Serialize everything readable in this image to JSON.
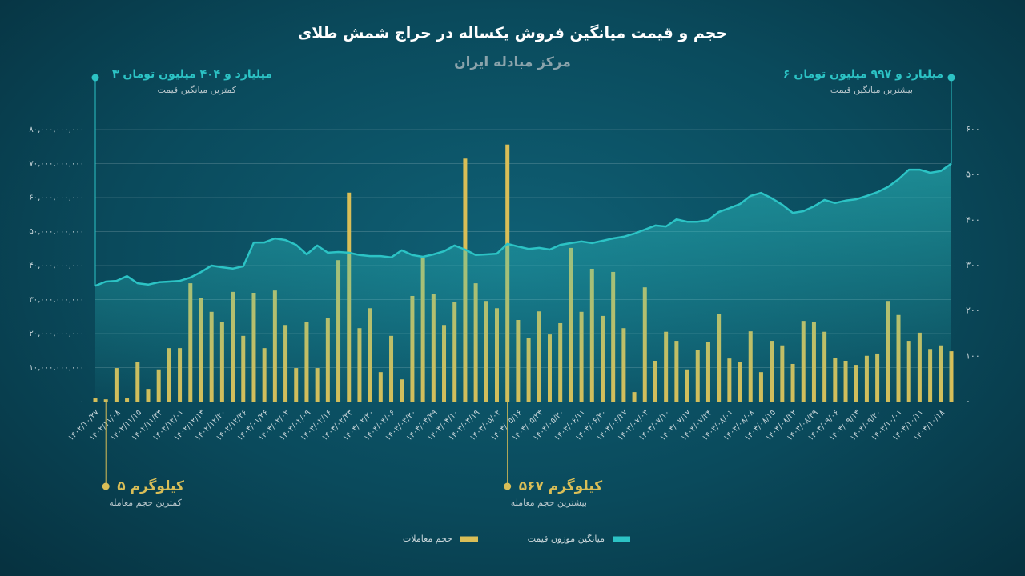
{
  "chart_data": {
    "type": "combo",
    "title": "حجم و قیمت میانگین فروش یکساله در حراج شمش طلای",
    "subtitle": "مرکز مبادله ایران",
    "categories": [
      "۱۴۰۲/۱۰/۲۷",
      null,
      "۱۴۰۲/۱۱/۰۸",
      null,
      "۱۴۰۲/۱۱/۱۵",
      null,
      "۱۴۰۲/۱۱/۲۴",
      null,
      "۱۴۰۲/۱۲/۰۱",
      null,
      "۱۴۰۲/۱۲/۱۳",
      null,
      "۱۴۰۲/۱۲/۲۰",
      null,
      "۱۴۰۲/۱۲/۲۶",
      null,
      "۱۴۰۳/۰۱/۲۶",
      null,
      "۱۴۰۳/۰۲/۰۲",
      null,
      "۱۴۰۳/۰۲/۰۹",
      null,
      "۱۴۰۳/۰۲/۱۶",
      null,
      "۱۴۰۳/۰۲/۲۳",
      null,
      "۱۴۰۳/۰۲/۳۰",
      null,
      "۱۴۰۳/۰۳/۰۶",
      null,
      "۱۴۰۳/۰۳/۲۰",
      null,
      "۱۴۰۳/۰۳/۲۹",
      null,
      "۱۴۰۳/۰۴/۱۰",
      null,
      "۱۴۰۳/۰۴/۱۹",
      null,
      "۱۴۰۳/۰۵/۰۲",
      null,
      "۱۴۰۳/۰۵/۱۶",
      null,
      "۱۴۰۳/۰۵/۲۳",
      null,
      "۱۴۰۳/۰۵/۳۰",
      null,
      "۱۴۰۳/۰۶/۱۱",
      null,
      "۱۴۰۳/۰۶/۲۰",
      null,
      "۱۴۰۳/۰۶/۲۷",
      null,
      "۱۴۰۳/۰۷/۰۳",
      null,
      "۱۴۰۳/۰۷/۱۰",
      null,
      "۱۴۰۳/۰۷/۱۷",
      null,
      "۱۴۰۳/۰۷/۲۴",
      null,
      "۱۴۰۳/۰۸/۰۱",
      null,
      "۱۴۰۳/۰۸/۰۸",
      null,
      "۱۴۰۳/۰۸/۱۵",
      null,
      "۱۴۰۳/۰۸/۲۲",
      null,
      "۱۴۰۳/۰۸/۲۹",
      null,
      "۱۴۰۳/۰۹/۰۶",
      null,
      "۱۴۰۳/۰۹/۱۳",
      null,
      "۱۴۰۳/۰۹/۲۰",
      null,
      "۱۴۰۳/۱۰/۰۱",
      null,
      "۱۴۰۳/۱۰/۱۱",
      null,
      "۱۴۰۳/۱۰/۱۸",
      null
    ],
    "series": [
      {
        "name": "حجم معاملات",
        "type": "bar",
        "axis": "y2",
        "color": "#d9be57",
        "values": [
          7,
          5,
          74,
          7,
          88,
          28,
          71,
          118,
          118,
          261,
          228,
          198,
          175,
          242,
          145,
          240,
          118,
          245,
          169,
          74,
          175,
          74,
          184,
          312,
          461,
          162,
          206,
          65,
          145,
          49,
          233,
          318,
          238,
          169,
          219,
          536,
          261,
          222,
          206,
          567,
          180,
          141,
          199,
          148,
          173,
          339,
          198,
          293,
          189,
          286,
          162,
          21,
          252,
          90,
          154,
          134,
          71,
          113,
          131,
          194,
          95,
          88,
          155,
          65,
          134,
          124,
          83,
          178,
          176,
          154,
          97,
          90,
          81,
          101,
          106,
          222,
          191,
          134,
          152,
          116,
          124,
          111
        ]
      },
      {
        "name": "میانگین موزون قیمت",
        "type": "area",
        "color": "#2cc3c5",
        "values": [
          34040000000,
          35300000000,
          35500000000,
          36900000000,
          34800000000,
          34400000000,
          35100000000,
          35300000000,
          35500000000,
          36500000000,
          38100000000,
          40000000000,
          39500000000,
          39100000000,
          39800000000,
          46800000000,
          46800000000,
          48000000000,
          47500000000,
          46100000000,
          43300000000,
          45900000000,
          43800000000,
          44000000000,
          43800000000,
          43100000000,
          42800000000,
          42800000000,
          42400000000,
          44500000000,
          43100000000,
          42600000000,
          43300000000,
          44200000000,
          45900000000,
          44700000000,
          43100000000,
          43300000000,
          43500000000,
          46400000000,
          45600000000,
          44900000000,
          45200000000,
          44700000000,
          46100000000,
          46600000000,
          47100000000,
          46600000000,
          47300000000,
          48000000000,
          48500000000,
          49400000000,
          50600000000,
          51800000000,
          51500000000,
          53600000000,
          52900000000,
          52900000000,
          53400000000,
          55800000000,
          56900000000,
          58100000000,
          60500000000,
          61400000000,
          59800000000,
          57900000000,
          55500000000,
          56000000000,
          57400000000,
          59300000000,
          58400000000,
          59100000000,
          59500000000,
          60500000000,
          61600000000,
          63100000000,
          65400000000,
          68200000000,
          68200000000,
          67300000000,
          67800000000,
          69970000000
        ]
      }
    ],
    "ylim": [
      0,
      80000000000
    ],
    "yticks": [
      {
        "value": 0,
        "label": "۰"
      },
      {
        "value": 10000000000,
        "label": "۱۰,۰۰۰,۰۰۰,۰۰۰"
      },
      {
        "value": 20000000000,
        "label": "۲۰,۰۰۰,۰۰۰,۰۰۰"
      },
      {
        "value": 30000000000,
        "label": "۳۰,۰۰۰,۰۰۰,۰۰۰"
      },
      {
        "value": 40000000000,
        "label": "۴۰,۰۰۰,۰۰۰,۰۰۰"
      },
      {
        "value": 50000000000,
        "label": "۵۰,۰۰۰,۰۰۰,۰۰۰"
      },
      {
        "value": 60000000000,
        "label": "۶۰,۰۰۰,۰۰۰,۰۰۰"
      },
      {
        "value": 70000000000,
        "label": "۷۰,۰۰۰,۰۰۰,۰۰۰"
      },
      {
        "value": 80000000000,
        "label": "۸۰,۰۰۰,۰۰۰,۰۰۰"
      }
    ],
    "y2lim": [
      0,
      600
    ],
    "y2ticks": [
      {
        "value": 0,
        "label": "۰"
      },
      {
        "value": 100,
        "label": "۱۰۰"
      },
      {
        "value": 200,
        "label": "۲۰۰"
      },
      {
        "value": 300,
        "label": "۳۰۰"
      },
      {
        "value": 400,
        "label": "۴۰۰"
      },
      {
        "value": 500,
        "label": "۵۰۰"
      },
      {
        "value": 600,
        "label": "۶۰۰"
      }
    ],
    "grid": true,
    "annotations": {
      "min_price": {
        "text": "۳ میلیارد و ۴۰۴ میلیون تومان",
        "subtext": "کمترین میانگین قیمت"
      },
      "max_price": {
        "text": "۶ میلیارد و ۹۹۷ میلیون تومان",
        "subtext": "بیشترین میانگین قیمت"
      },
      "min_volume": {
        "text": "۵ کیلوگرم",
        "subtext": "کمترین حجم معامله"
      },
      "max_volume": {
        "text": "۵۶۷ کیلوگرم",
        "subtext": "بیشترین حجم معامله"
      }
    }
  }
}
